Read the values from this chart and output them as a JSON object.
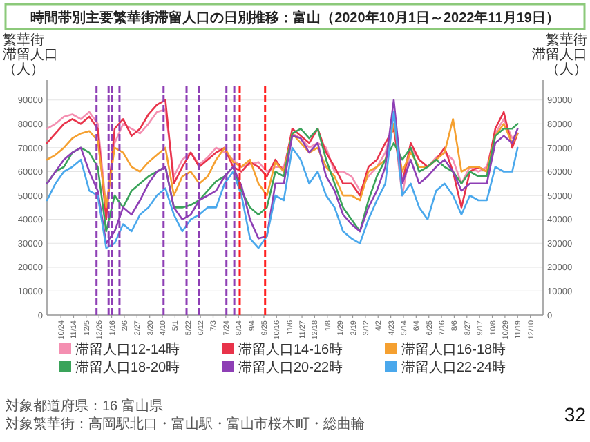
{
  "chart_data": {
    "type": "line",
    "title": "時間帯別主要繁華街滞留人口の日別推移：富山（2020年10月1日～2022年11月19日）",
    "ylabel": "繁華街滞留人口（人）",
    "y2label": "繁華街滞留人口（人）",
    "x": [
      "2020-10-01",
      "2020-10-15",
      "2020-10-29",
      "2020-11-12",
      "2020-11-26",
      "2020-12-10",
      "2020-12-24",
      "2021-01-07",
      "2021-01-21",
      "2021-02-04",
      "2021-02-18",
      "2021-03-04",
      "2021-03-18",
      "2021-04-01",
      "2021-04-15",
      "2021-04-29",
      "2021-05-13",
      "2021-05-27",
      "2021-06-10",
      "2021-06-24",
      "2021-07-08",
      "2021-07-22",
      "2021-08-05",
      "2021-08-19",
      "2021-09-02",
      "2021-09-16",
      "2021-09-30",
      "2021-10-14",
      "2021-10-28",
      "2021-11-11",
      "2021-11-25",
      "2021-12-09",
      "2021-12-23",
      "2022-01-06",
      "2022-01-20",
      "2022-02-03",
      "2022-02-17",
      "2022-03-03",
      "2022-03-17",
      "2022-03-31",
      "2022-04-14",
      "2022-04-28",
      "2022-05-12",
      "2022-05-26",
      "2022-06-09",
      "2022-06-23",
      "2022-07-07",
      "2022-07-21",
      "2022-08-04",
      "2022-08-18",
      "2022-09-01",
      "2022-09-15",
      "2022-09-29",
      "2022-10-13",
      "2022-10-27",
      "2022-11-10",
      "2022-11-19"
    ],
    "series": [
      {
        "name": "滞留人口12-14時",
        "color": "#f48fb1",
        "values": [
          78000,
          80000,
          83000,
          84000,
          82000,
          85000,
          80000,
          45000,
          72000,
          80000,
          78000,
          76000,
          80000,
          85000,
          86000,
          58000,
          65000,
          68000,
          63000,
          66000,
          70000,
          68000,
          65000,
          62000,
          63000,
          64000,
          60000,
          62000,
          62000,
          76000,
          74000,
          70000,
          72000,
          70000,
          60000,
          60000,
          58000,
          52000,
          58000,
          62000,
          68000,
          80000,
          50000,
          70000,
          65000,
          62000,
          66000,
          68000,
          65000,
          55000,
          62000,
          60000,
          62000,
          76000,
          82000,
          74000,
          76000
        ]
      },
      {
        "name": "滞留人口14-16時",
        "color": "#e8334a",
        "values": [
          72000,
          76000,
          80000,
          82000,
          80000,
          83000,
          78000,
          40000,
          78000,
          82000,
          75000,
          78000,
          84000,
          88000,
          90000,
          55000,
          62000,
          68000,
          62000,
          65000,
          68000,
          70000,
          62000,
          60000,
          64000,
          62000,
          58000,
          65000,
          60000,
          78000,
          75000,
          72000,
          78000,
          68000,
          62000,
          55000,
          55000,
          50000,
          62000,
          65000,
          72000,
          78000,
          55000,
          72000,
          65000,
          62000,
          65000,
          70000,
          60000,
          45000,
          60000,
          62000,
          60000,
          78000,
          85000,
          70000,
          76000
        ]
      },
      {
        "name": "滞留人口16-18時",
        "color": "#f5a030",
        "values": [
          65000,
          67000,
          70000,
          74000,
          76000,
          77000,
          73000,
          45000,
          70000,
          68000,
          62000,
          60000,
          64000,
          67000,
          70000,
          50000,
          58000,
          60000,
          55000,
          58000,
          65000,
          70000,
          64000,
          62000,
          65000,
          55000,
          50000,
          64000,
          60000,
          76000,
          72000,
          68000,
          70000,
          62000,
          58000,
          50000,
          50000,
          48000,
          60000,
          62000,
          65000,
          80000,
          60000,
          68000,
          62000,
          62000,
          65000,
          68000,
          82000,
          60000,
          62000,
          62000,
          60000,
          75000,
          80000,
          72000,
          76000
        ]
      },
      {
        "name": "滞留人口18-20時",
        "color": "#3aa35a",
        "values": [
          55000,
          60000,
          62000,
          68000,
          70000,
          68000,
          62000,
          35000,
          50000,
          45000,
          52000,
          55000,
          58000,
          60000,
          62000,
          45000,
          45000,
          46000,
          48000,
          52000,
          56000,
          58000,
          62000,
          52000,
          45000,
          42000,
          45000,
          60000,
          58000,
          76000,
          78000,
          74000,
          78000,
          65000,
          55000,
          45000,
          40000,
          35000,
          48000,
          58000,
          65000,
          72000,
          65000,
          70000,
          60000,
          62000,
          65000,
          62000,
          60000,
          55000,
          60000,
          58000,
          58000,
          75000,
          78000,
          78000,
          80000
        ]
      },
      {
        "name": "滞留人口20-22時",
        "color": "#8e3fb5",
        "values": [
          55000,
          60000,
          65000,
          68000,
          70000,
          60000,
          52000,
          30000,
          35000,
          45000,
          42000,
          48000,
          55000,
          60000,
          62000,
          45000,
          40000,
          42000,
          48000,
          50000,
          52000,
          58000,
          62000,
          54000,
          40000,
          32000,
          33000,
          55000,
          55000,
          75000,
          74000,
          68000,
          72000,
          58000,
          52000,
          42000,
          38000,
          35000,
          45000,
          52000,
          62000,
          90000,
          55000,
          65000,
          55000,
          58000,
          62000,
          65000,
          60000,
          52000,
          55000,
          55000,
          55000,
          72000,
          75000,
          72000,
          78000
        ]
      },
      {
        "name": "滞留人口22-24時",
        "color": "#4aa8ec",
        "values": [
          48000,
          55000,
          60000,
          62000,
          65000,
          52000,
          50000,
          28000,
          30000,
          38000,
          35000,
          42000,
          45000,
          50000,
          53000,
          42000,
          35000,
          40000,
          42000,
          45000,
          45000,
          55000,
          60000,
          50000,
          32000,
          28000,
          33000,
          50000,
          48000,
          70000,
          65000,
          55000,
          60000,
          50000,
          45000,
          35000,
          32000,
          30000,
          40000,
          48000,
          55000,
          85000,
          50000,
          55000,
          45000,
          40000,
          52000,
          55000,
          50000,
          42000,
          50000,
          48000,
          48000,
          62000,
          60000,
          60000,
          70000
        ]
      }
    ],
    "xlim": [
      "2020-10-01",
      "2022-12-31"
    ],
    "xticks": [
      {
        "value": "2020-10-24",
        "label": "10/24"
      },
      {
        "value": "2020-11-14",
        "label": "11/14"
      },
      {
        "value": "2020-12-05",
        "label": "12/5"
      },
      {
        "value": "2020-12-26",
        "label": "12/26"
      },
      {
        "value": "2021-01-16",
        "label": "1/16"
      },
      {
        "value": "2021-02-06",
        "label": "2/6"
      },
      {
        "value": "2021-02-27",
        "label": "2/27"
      },
      {
        "value": "2021-03-20",
        "label": "3/20"
      },
      {
        "value": "2021-04-10",
        "label": "4/10"
      },
      {
        "value": "2021-05-01",
        "label": "5/1"
      },
      {
        "value": "2021-05-22",
        "label": "5/22"
      },
      {
        "value": "2021-06-12",
        "label": "6/12"
      },
      {
        "value": "2021-07-03",
        "label": "7/3"
      },
      {
        "value": "2021-07-24",
        "label": "7/24"
      },
      {
        "value": "2021-08-14",
        "label": "8/14"
      },
      {
        "value": "2021-09-04",
        "label": "9/4"
      },
      {
        "value": "2021-09-25",
        "label": "9/25"
      },
      {
        "value": "2021-10-16",
        "label": "10/16"
      },
      {
        "value": "2021-11-06",
        "label": "11/6"
      },
      {
        "value": "2021-11-27",
        "label": "11/27"
      },
      {
        "value": "2021-12-18",
        "label": "12/18"
      },
      {
        "value": "2022-01-08",
        "label": "1/8"
      },
      {
        "value": "2022-01-29",
        "label": "1/29"
      },
      {
        "value": "2022-02-19",
        "label": "2/19"
      },
      {
        "value": "2022-03-12",
        "label": "3/12"
      },
      {
        "value": "2022-04-02",
        "label": "4/2"
      },
      {
        "value": "2022-04-23",
        "label": "4/23"
      },
      {
        "value": "2022-05-14",
        "label": "5/14"
      },
      {
        "value": "2022-06-04",
        "label": "6/4"
      },
      {
        "value": "2022-06-25",
        "label": "6/25"
      },
      {
        "value": "2022-07-16",
        "label": "7/16"
      },
      {
        "value": "2022-08-06",
        "label": "8/6"
      },
      {
        "value": "2022-08-27",
        "label": "8/27"
      },
      {
        "value": "2022-09-17",
        "label": "9/17"
      },
      {
        "value": "2022-10-08",
        "label": "10/8"
      },
      {
        "value": "2022-10-29",
        "label": "10/29"
      },
      {
        "value": "2022-11-19",
        "label": "11/19"
      },
      {
        "value": "2022-12-10",
        "label": "12/10"
      }
    ],
    "ylim": [
      0,
      96000
    ],
    "yticks": [
      0,
      10000,
      20000,
      30000,
      40000,
      50000,
      60000,
      70000,
      80000,
      90000
    ],
    "y2lim": [
      0,
      96000
    ],
    "y2ticks": [
      0,
      10000,
      20000,
      30000,
      40000,
      50000,
      60000,
      70000,
      80000,
      90000
    ],
    "grid": "y",
    "legend": "bottom",
    "ref_lines": [
      {
        "axis": "x",
        "value": "2020-12-22",
        "color": "#8e3fb5",
        "line_style": "dashed"
      },
      {
        "axis": "x",
        "value": "2021-01-11",
        "color": "#8e3fb5",
        "line_style": "dashed"
      },
      {
        "axis": "x",
        "value": "2021-01-16",
        "color": "#8e3fb5",
        "line_style": "dashed"
      },
      {
        "axis": "x",
        "value": "2021-01-29",
        "color": "#8e3fb5",
        "line_style": "dashed"
      },
      {
        "axis": "x",
        "value": "2021-04-12",
        "color": "#8e3fb5",
        "line_style": "dashed"
      },
      {
        "axis": "x",
        "value": "2021-05-20",
        "color": "#8e3fb5",
        "line_style": "dashed"
      },
      {
        "axis": "x",
        "value": "2021-06-10",
        "color": "#8e3fb5",
        "line_style": "dashed"
      },
      {
        "axis": "x",
        "value": "2021-07-25",
        "color": "#8e3fb5",
        "line_style": "dashed"
      },
      {
        "axis": "x",
        "value": "2021-08-07",
        "color": "#8e3fb5",
        "line_style": "dashed"
      },
      {
        "axis": "x",
        "value": "2021-08-16",
        "color": "#ff2020",
        "line_style": "dashed"
      },
      {
        "axis": "x",
        "value": "2021-09-27",
        "color": "#ff2020",
        "line_style": "dashed"
      }
    ],
    "annotations": [
      "対象都道府県：16 富山県",
      "対象繁華街：高岡駅北口・富山駅・富山市桜木町・総曲輪",
      "32"
    ]
  }
}
